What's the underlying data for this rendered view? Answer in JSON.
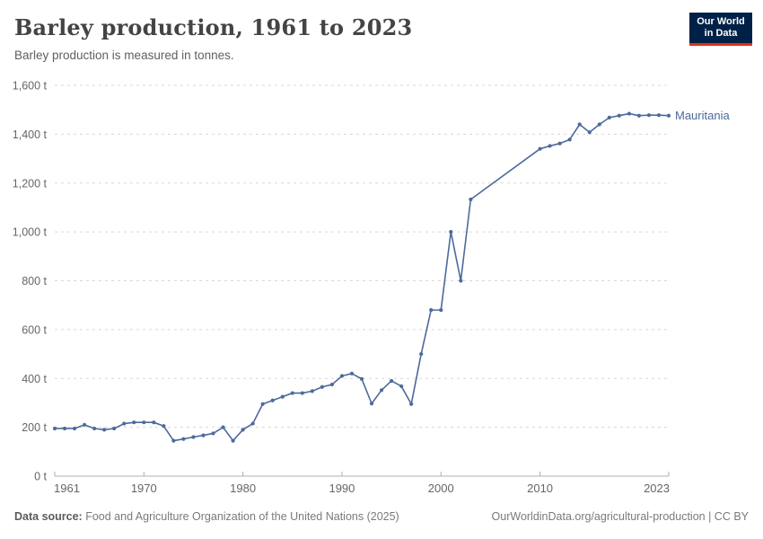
{
  "header": {
    "title": "Barley production, 1961 to 2023",
    "subtitle": "Barley production is measured in tonnes."
  },
  "logo": {
    "line1": "Our World",
    "line2": "in Data",
    "bg_color": "#002147",
    "accent_color": "#e0311a"
  },
  "chart_data": {
    "type": "line",
    "title": "Barley production, 1961 to 2023",
    "unit": "tonnes",
    "xlim": [
      1961,
      2023
    ],
    "ylim": [
      0,
      1600
    ],
    "x_ticks": [
      1961,
      1970,
      1980,
      1990,
      2000,
      2010,
      2023
    ],
    "y_ticks": [
      0,
      200,
      400,
      600,
      800,
      1000,
      1200,
      1400,
      1600
    ],
    "y_tick_suffix": " t",
    "grid": "horizontal-dashed",
    "grid_color": "#d8d8d8",
    "axis_color": "#b0b0b0",
    "tick_label_color": "#666666",
    "legend_position": "end-of-line-label",
    "series": [
      {
        "name": "Mauritania",
        "color": "#4c6a9c",
        "points": [
          [
            1961,
            195
          ],
          [
            1962,
            195
          ],
          [
            1963,
            195
          ],
          [
            1964,
            210
          ],
          [
            1965,
            195
          ],
          [
            1966,
            190
          ],
          [
            1967,
            195
          ],
          [
            1968,
            215
          ],
          [
            1969,
            220
          ],
          [
            1970,
            220
          ],
          [
            1971,
            220
          ],
          [
            1972,
            205
          ],
          [
            1973,
            145
          ],
          [
            1974,
            152
          ],
          [
            1975,
            160
          ],
          [
            1976,
            167
          ],
          [
            1977,
            175
          ],
          [
            1978,
            200
          ],
          [
            1979,
            145
          ],
          [
            1980,
            190
          ],
          [
            1981,
            215
          ],
          [
            1982,
            295
          ],
          [
            1983,
            310
          ],
          [
            1984,
            325
          ],
          [
            1985,
            340
          ],
          [
            1986,
            340
          ],
          [
            1987,
            348
          ],
          [
            1988,
            365
          ],
          [
            1989,
            375
          ],
          [
            1990,
            410
          ],
          [
            1991,
            420
          ],
          [
            1992,
            398
          ],
          [
            1993,
            297
          ],
          [
            1994,
            352
          ],
          [
            1995,
            390
          ],
          [
            1996,
            368
          ],
          [
            1997,
            295
          ],
          [
            1998,
            500
          ],
          [
            1999,
            680
          ],
          [
            2000,
            680
          ],
          [
            2001,
            1000
          ],
          [
            2002,
            800
          ],
          [
            2003,
            1133
          ],
          [
            2010,
            1340
          ],
          [
            2011,
            1352
          ],
          [
            2012,
            1362
          ],
          [
            2013,
            1378
          ],
          [
            2014,
            1440
          ],
          [
            2015,
            1408
          ],
          [
            2016,
            1440
          ],
          [
            2017,
            1468
          ],
          [
            2018,
            1476
          ],
          [
            2019,
            1484
          ],
          [
            2020,
            1476
          ],
          [
            2021,
            1478
          ],
          [
            2022,
            1478
          ],
          [
            2023,
            1476
          ]
        ]
      }
    ]
  },
  "footer": {
    "source_label": "Data source:",
    "source_text": " Food and Agriculture Organization of the United Nations (2025)",
    "right_text": "OurWorldinData.org/agricultural-production | CC BY"
  }
}
